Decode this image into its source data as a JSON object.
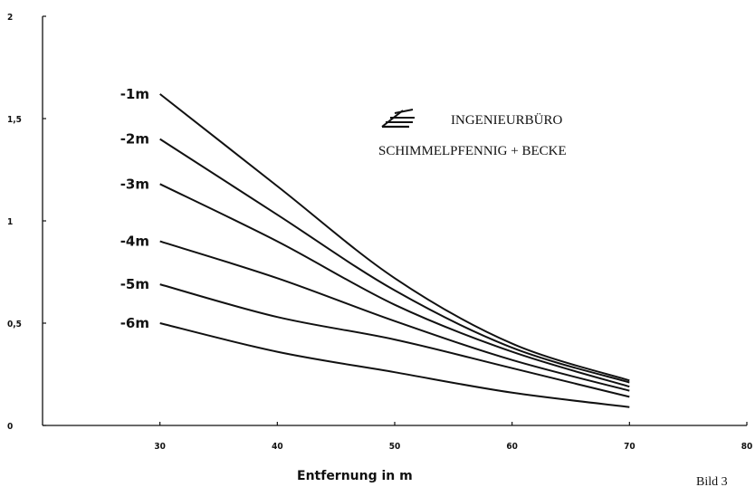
{
  "chart_data": {
    "type": "line",
    "title": "",
    "xlabel": "Entfernung in m",
    "ylabel": "",
    "xlim": [
      20,
      80
    ],
    "ylim": [
      0,
      2
    ],
    "x_ticks": [
      "30",
      "40",
      "50",
      "60",
      "70",
      "80"
    ],
    "y_ticks": [
      "0",
      "0,5",
      "1",
      "1,5",
      "2"
    ],
    "x": [
      30,
      40,
      50,
      60,
      70
    ],
    "series": [
      {
        "name": "-1m",
        "values": [
          1.62,
          1.17,
          0.72,
          0.4,
          0.22
        ]
      },
      {
        "name": "-2m",
        "values": [
          1.4,
          1.03,
          0.66,
          0.38,
          0.21
        ]
      },
      {
        "name": "-3m",
        "values": [
          1.18,
          0.9,
          0.59,
          0.36,
          0.19
        ]
      },
      {
        "name": "-4m",
        "values": [
          0.9,
          0.72,
          0.51,
          0.32,
          0.17
        ]
      },
      {
        "name": "-5m",
        "values": [
          0.69,
          0.53,
          0.42,
          0.28,
          0.14
        ]
      },
      {
        "name": "-6m",
        "values": [
          0.5,
          0.36,
          0.26,
          0.16,
          0.09
        ]
      }
    ],
    "grid": false,
    "legend": "labels at left of each curve",
    "line_color": "#111111"
  },
  "annotation": {
    "company_line1": "INGENIEURBÜRO",
    "company_line2": "SCHIMMELPFENNIG + BECKE",
    "logo": "engineering-firm-logo"
  },
  "caption": "Bild 3"
}
